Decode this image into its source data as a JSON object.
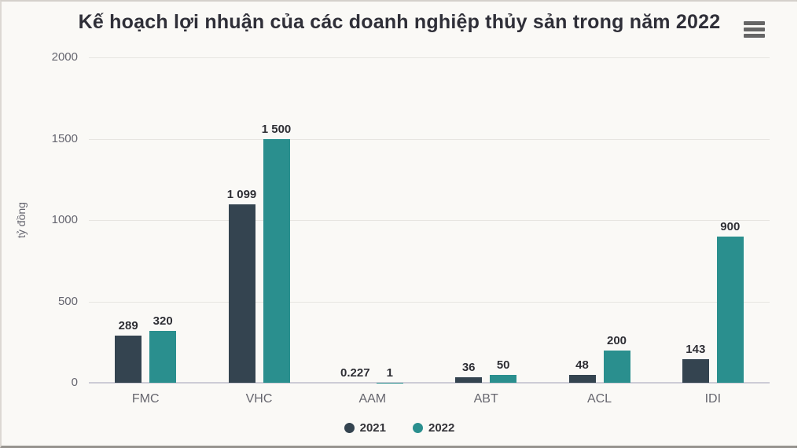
{
  "title": "Kế hoạch lợi nhuận của các doanh nghiệp thủy sản trong năm 2022",
  "menu_icon": "hamburger-menu-icon",
  "chart_data": {
    "type": "bar",
    "title": "Kế hoạch lợi nhuận của các doanh nghiệp thủy sản trong năm 2022",
    "xlabel": "",
    "ylabel": "tỷ đồng",
    "ylim": [
      0,
      2000
    ],
    "yticks": [
      0,
      500,
      1000,
      1500,
      2000
    ],
    "ytick_labels": [
      "0",
      "500",
      "1000",
      "1500",
      "2000"
    ],
    "grid": true,
    "legend_position": "bottom",
    "categories": [
      "FMC",
      "VHC",
      "AAM",
      "ABT",
      "ACL",
      "IDI"
    ],
    "series": [
      {
        "name": "2021",
        "color": "#344450",
        "values": [
          289,
          1099,
          0.227,
          36,
          48,
          143
        ],
        "labels": [
          "289",
          "1 099",
          "0.227",
          "36",
          "48",
          "143"
        ]
      },
      {
        "name": "2022",
        "color": "#2a8f8e",
        "values": [
          320,
          1500,
          1,
          50,
          200,
          900
        ],
        "labels": [
          "320",
          "1 500",
          "1",
          "50",
          "200",
          "900"
        ]
      }
    ]
  }
}
